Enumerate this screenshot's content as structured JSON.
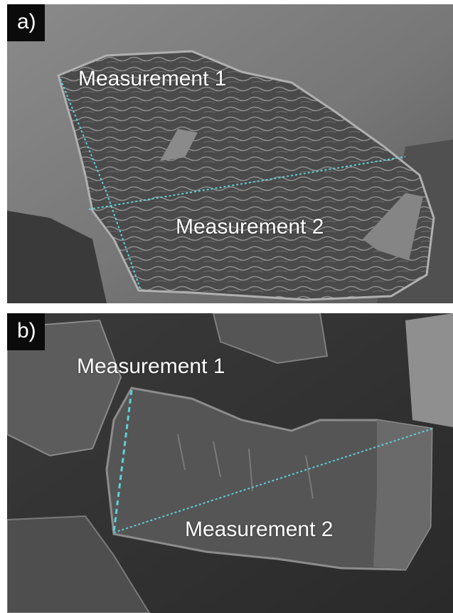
{
  "panels": [
    {
      "label": "a)",
      "measurement_labels": [
        "Measurement 1",
        "Measurement 2"
      ]
    },
    {
      "label": "b)",
      "measurement_labels": [
        "Measurement 1",
        "Measurement 2"
      ]
    }
  ],
  "colors": {
    "measurement_line": "#5fd0d8",
    "label_text": "#ffffff",
    "label_background": "#0b0b0b"
  }
}
